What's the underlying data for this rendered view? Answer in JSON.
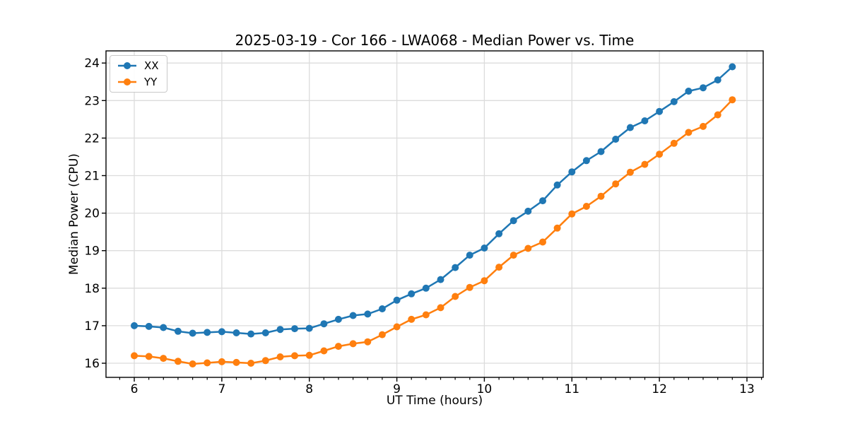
{
  "chart_data": {
    "type": "line",
    "title": "2025-03-19 - Cor 166 - LWA068 - Median Power vs. Time",
    "xlabel": "UT Time (hours)",
    "ylabel": "Median Power (CPU)",
    "x": [
      6.0,
      6.167,
      6.333,
      6.5,
      6.667,
      6.833,
      7.0,
      7.167,
      7.333,
      7.5,
      7.667,
      7.833,
      8.0,
      8.167,
      8.333,
      8.5,
      8.667,
      8.833,
      9.0,
      9.167,
      9.333,
      9.5,
      9.667,
      9.833,
      10.0,
      10.167,
      10.333,
      10.5,
      10.667,
      10.833,
      11.0,
      11.167,
      11.333,
      11.5,
      11.667,
      11.833,
      12.0,
      12.167,
      12.333,
      12.5,
      12.667,
      12.833
    ],
    "series": [
      {
        "name": "XX",
        "color": "#1f77b4",
        "marker": "circle",
        "values": [
          17.0,
          16.98,
          16.95,
          16.85,
          16.8,
          16.82,
          16.84,
          16.81,
          16.78,
          16.81,
          16.9,
          16.92,
          16.93,
          17.05,
          17.17,
          17.27,
          17.31,
          17.45,
          17.68,
          17.85,
          18.0,
          18.23,
          18.55,
          18.88,
          19.07,
          19.45,
          19.8,
          20.05,
          20.33,
          20.75,
          21.1,
          21.4,
          21.64,
          21.97,
          22.28,
          22.46,
          22.71,
          22.97,
          23.25,
          23.34,
          23.55,
          23.9
        ]
      },
      {
        "name": "YY",
        "color": "#ff7f0e",
        "marker": "circle",
        "values": [
          16.2,
          16.18,
          16.13,
          16.05,
          15.98,
          16.01,
          16.04,
          16.02,
          16.0,
          16.07,
          16.17,
          16.2,
          16.21,
          16.33,
          16.45,
          16.52,
          16.57,
          16.76,
          16.97,
          17.17,
          17.29,
          17.48,
          17.78,
          18.02,
          18.2,
          18.56,
          18.88,
          19.06,
          19.23,
          19.6,
          19.98,
          20.18,
          20.45,
          20.78,
          21.09,
          21.3,
          21.57,
          21.86,
          22.15,
          22.31,
          22.62,
          23.02
        ]
      }
    ],
    "xlim": [
      5.677,
      13.186
    ],
    "ylim": [
      15.623,
      24.324
    ],
    "xticks": [
      6,
      7,
      8,
      9,
      10,
      11,
      12,
      13
    ],
    "yticks": [
      16,
      17,
      18,
      19,
      20,
      21,
      22,
      23,
      24
    ],
    "x_minor_per_unit": 6,
    "grid": true,
    "legend_position": "upper left",
    "colors": {
      "grid": "#dcdcdc",
      "spine": "#000000",
      "tick_text": "#000000",
      "background": "#ffffff"
    }
  }
}
